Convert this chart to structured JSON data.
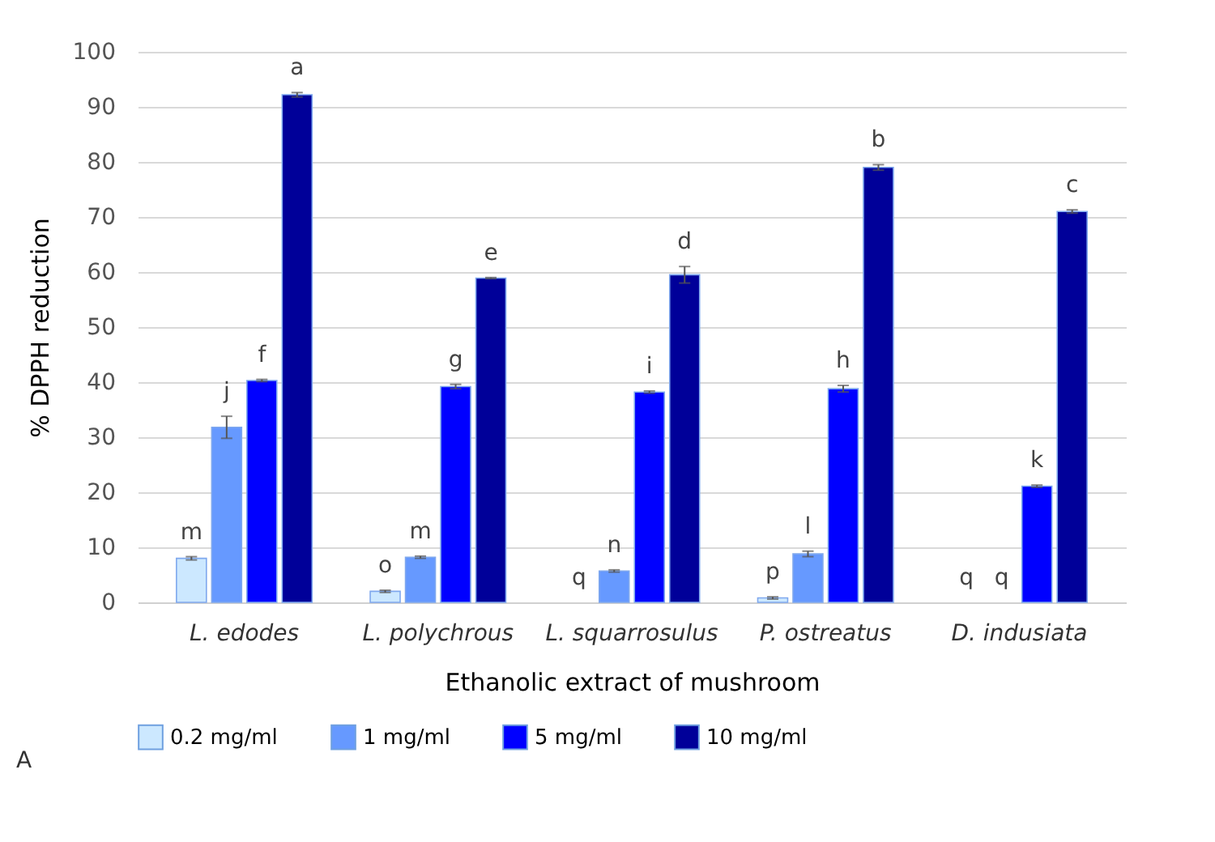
{
  "chart_data": {
    "type": "bar",
    "xlabel": "Ethanolic extract of mushroom",
    "ylabel": "% DPPH reduction",
    "categories": [
      "L. edodes",
      "L. polychrous",
      "L. squarrosulus",
      "P. ostreatus",
      "D. indusiata"
    ],
    "series": [
      {
        "name": "0.2 mg/ml",
        "color": "#cce8ff",
        "values": [
          8.0,
          2.0,
          0,
          0.8,
          0
        ],
        "errors": [
          0.3,
          0.2,
          null,
          0.2,
          null
        ]
      },
      {
        "name": "1 mg/ml",
        "color": "#6699ff",
        "values": [
          31.8,
          8.2,
          5.7,
          8.8,
          0
        ],
        "errors": [
          2.0,
          0.2,
          0.2,
          0.5,
          null
        ]
      },
      {
        "name": "5 mg/ml",
        "color": "#0000ff",
        "values": [
          40.3,
          39.2,
          38.2,
          38.8,
          21.1
        ],
        "errors": [
          0.2,
          0.4,
          0.2,
          0.6,
          0.2
        ]
      },
      {
        "name": "10 mg/ml",
        "color": "#000099",
        "values": [
          92.2,
          58.9,
          59.5,
          79.0,
          71.0
        ],
        "errors": [
          0.4,
          0.1,
          1.5,
          0.5,
          0.3
        ]
      }
    ],
    "ylim": [
      0,
      100
    ],
    "yticks": [
      0,
      10,
      20,
      30,
      40,
      50,
      60,
      70,
      80,
      90,
      100
    ],
    "grid": "y",
    "legend": "bottom",
    "annotations": [
      "m",
      "j",
      "f",
      "a",
      "o",
      "m",
      "g",
      "e",
      "q",
      "n",
      "i",
      "d",
      "p",
      "l",
      "h",
      "b",
      "q",
      "q",
      "k",
      "c",
      "A"
    ]
  }
}
